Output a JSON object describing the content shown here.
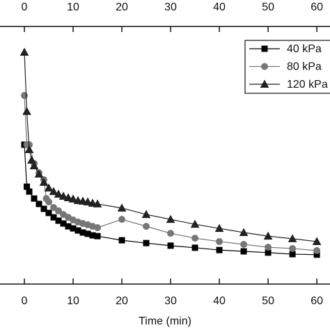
{
  "chart_data": {
    "type": "line",
    "x_label": "Time (min)",
    "xlim": [
      -5,
      62.7
    ],
    "xticks": [
      0,
      10,
      20,
      30,
      40,
      50,
      60
    ],
    "ylim": [
      0,
      100
    ],
    "legend": "upper right",
    "series": [
      {
        "name": "40 kPa",
        "color": "#000000",
        "marker": "square",
        "x": [
          0,
          0.5,
          1,
          2,
          3,
          4,
          5,
          6,
          7,
          8,
          9,
          10,
          11,
          12,
          13,
          14,
          15,
          20,
          25,
          30,
          35,
          40,
          45,
          50,
          55,
          60
        ],
        "values": [
          54.1,
          37.8,
          35.9,
          33.2,
          31.1,
          29.2,
          27.6,
          25.9,
          24.6,
          23.5,
          22.4,
          21.6,
          20.8,
          20.0,
          19.5,
          18.9,
          18.6,
          17.0,
          15.9,
          14.9,
          14.1,
          13.2,
          12.7,
          12.2,
          11.6,
          11.4
        ]
      },
      {
        "name": "80 kPa",
        "color": "#777777",
        "marker": "circle",
        "x": [
          0,
          0.5,
          1,
          2,
          3,
          4,
          4.5,
          5,
          6,
          7,
          8,
          9,
          10,
          11,
          12,
          13,
          14,
          15,
          20,
          25,
          30,
          35,
          40,
          45,
          50,
          55,
          60
        ],
        "values": [
          73.2,
          54.1,
          54.1,
          46.8,
          43.2,
          40.5,
          33.2,
          31.9,
          29.7,
          28.4,
          27.0,
          25.9,
          24.9,
          24.1,
          23.5,
          23.0,
          22.4,
          21.9,
          25.1,
          22.4,
          19.7,
          17.8,
          16.5,
          15.4,
          14.3,
          13.8,
          13.0
        ]
      },
      {
        "name": "120 kPa",
        "color": "#222222",
        "marker": "triangle",
        "x": [
          0,
          0.5,
          1,
          1.5,
          2,
          3,
          4,
          5,
          6,
          7,
          8,
          9,
          10,
          11,
          12,
          13,
          14,
          15,
          20,
          25,
          30,
          35,
          40,
          45,
          50,
          55,
          60
        ],
        "values": [
          90.0,
          67.0,
          52.2,
          48.1,
          45.9,
          42.7,
          39.5,
          37.3,
          35.9,
          34.9,
          34.1,
          33.5,
          33.0,
          32.4,
          32.2,
          31.9,
          31.4,
          31.1,
          29.5,
          27.0,
          25.1,
          23.2,
          21.6,
          20.0,
          18.6,
          17.6,
          16.5
        ]
      }
    ]
  }
}
